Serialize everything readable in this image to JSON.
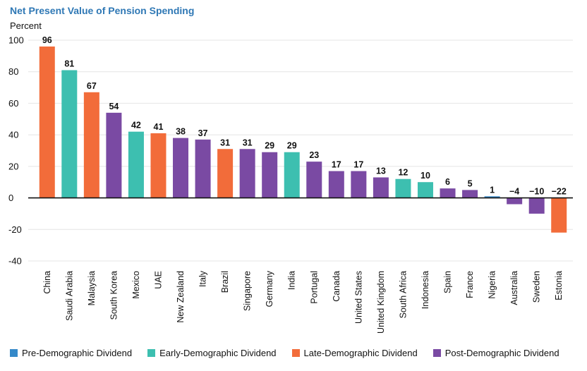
{
  "chart_data": {
    "type": "bar",
    "title": "Net Present Value of Pension Spending",
    "ylabel": "Percent",
    "xlabel": "",
    "ylim": [
      -40,
      100
    ],
    "yticks": [
      -40,
      -20,
      0,
      20,
      40,
      60,
      80,
      100
    ],
    "ytick_labels": [
      "-40",
      "-20",
      "0",
      "20",
      "40",
      "60",
      "80",
      "100"
    ],
    "grid": true,
    "legend_position": "bottom",
    "categories": [
      "China",
      "Saudi Arabia",
      "Malaysia",
      "South Korea",
      "Mexico",
      "UAE",
      "New Zealand",
      "Italy",
      "Brazil",
      "Singapore",
      "Germany",
      "India",
      "Portugal",
      "Canada",
      "United States",
      "United Kingdom",
      "South Africa",
      "Indonesia",
      "Spain",
      "France",
      "Nigeria",
      "Australia",
      "Sweden",
      "Estonia"
    ],
    "values": [
      96,
      81,
      67,
      54,
      42,
      41,
      38,
      37,
      31,
      31,
      29,
      29,
      23,
      17,
      17,
      13,
      12,
      10,
      6,
      5,
      1,
      -4,
      -10,
      -22
    ],
    "value_labels": [
      "96",
      "81",
      "67",
      "54",
      "42",
      "41",
      "38",
      "37",
      "31",
      "31",
      "29",
      "29",
      "23",
      "17",
      "17",
      "13",
      "12",
      "10",
      "6",
      "5",
      "1",
      "−4",
      "−10",
      "−22"
    ],
    "groups": [
      "Late-Demographic Dividend",
      "Early-Demographic Dividend",
      "Late-Demographic Dividend",
      "Post-Demographic Dividend",
      "Early-Demographic Dividend",
      "Late-Demographic Dividend",
      "Post-Demographic Dividend",
      "Post-Demographic Dividend",
      "Late-Demographic Dividend",
      "Post-Demographic Dividend",
      "Post-Demographic Dividend",
      "Early-Demographic Dividend",
      "Post-Demographic Dividend",
      "Post-Demographic Dividend",
      "Post-Demographic Dividend",
      "Post-Demographic Dividend",
      "Early-Demographic Dividend",
      "Early-Demographic Dividend",
      "Post-Demographic Dividend",
      "Post-Demographic Dividend",
      "Pre-Demographic Dividend",
      "Post-Demographic Dividend",
      "Post-Demographic Dividend",
      "Late-Demographic Dividend"
    ],
    "legend": [
      {
        "name": "Pre-Demographic Dividend",
        "color": "#3589c9"
      },
      {
        "name": "Early-Demographic Dividend",
        "color": "#3dbfb0"
      },
      {
        "name": "Late-Demographic Dividend",
        "color": "#f26c3a"
      },
      {
        "name": "Post-Demographic Dividend",
        "color": "#7a4aa3"
      }
    ],
    "colors": {
      "title": "#2f78b5",
      "gridline": "#e4e4e4",
      "zero_line": "#111111",
      "text": "#111111"
    }
  }
}
